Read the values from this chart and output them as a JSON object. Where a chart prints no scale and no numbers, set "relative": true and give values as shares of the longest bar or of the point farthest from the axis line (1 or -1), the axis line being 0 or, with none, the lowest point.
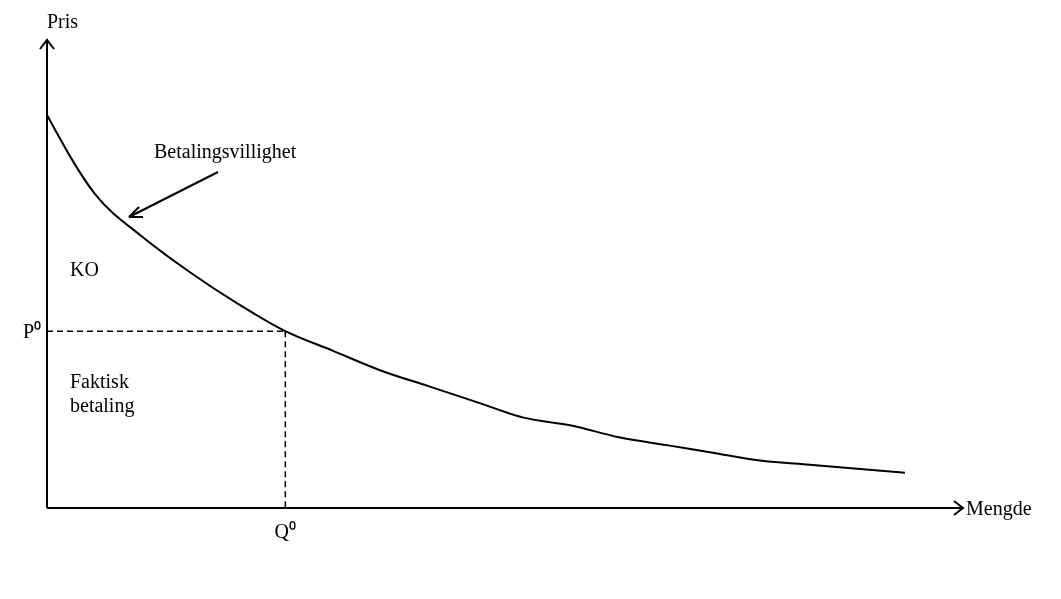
{
  "chart_data": {
    "type": "line",
    "relative": true,
    "xlabel": "Mengde",
    "ylabel": "Pris",
    "categories": [
      null,
      null,
      null,
      null,
      null,
      null,
      null,
      null,
      null,
      null,
      null,
      null,
      null,
      null,
      null,
      null,
      null,
      null,
      null
    ],
    "series": [
      {
        "color": "#000000",
        "values": [
          1,
          0.8,
          0.69,
          0.6,
          0.52,
          0.45,
          0.4,
          0.35,
          0.31,
          0.27,
          0.23,
          0.21,
          0.18,
          0.16,
          0.14,
          0.12,
          0.11,
          0.1,
          0.09
        ]
      }
    ],
    "ref_lines": [
      {
        "axis": "y",
        "value": 0.45,
        "label": "P⁰",
        "line_style": "dashed"
      }
    ],
    "annotations": [
      "Betalingsvillighet",
      "KO",
      "Faktisk betaling",
      "Q⁰"
    ]
  }
}
